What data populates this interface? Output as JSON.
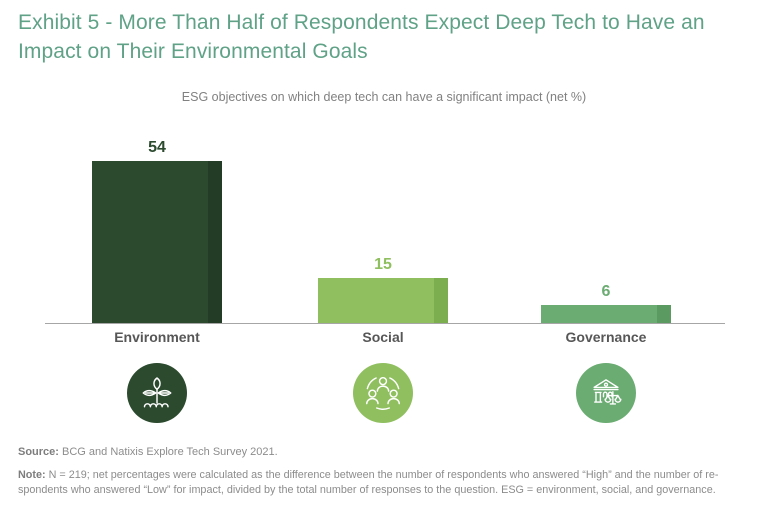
{
  "title": {
    "line1": "Exhibit 5 - More Than Half of Respondents Expect Deep Tech to Have an",
    "line2": "Impact on Their Environmental Goals"
  },
  "subtitle": "ESG objectives on which deep tech can have a significant impact (net %)",
  "chart_data": {
    "type": "bar",
    "title": "ESG objectives on which deep tech can have a significant impact (net %)",
    "categories": [
      "Environment",
      "Social",
      "Governance"
    ],
    "values": [
      54,
      15,
      6
    ],
    "value_labels": [
      "54",
      "15",
      "6"
    ],
    "bar_colors": [
      "#2b4a2e",
      "#8fbf5f",
      "#6bac72"
    ],
    "bar_shade_colors": [
      "#223c25",
      "#7cad4f",
      "#5b9b62"
    ],
    "xlabel": "",
    "ylabel": "net %",
    "ylim": [
      0,
      54
    ],
    "grid": false,
    "legend": "none"
  },
  "bars": [
    {
      "label": "Environment",
      "value": "54",
      "color": "#2b4a2e",
      "shade": "#223c25",
      "icon": "plant-icon"
    },
    {
      "label": "Social",
      "value": "15",
      "color": "#8fbf5f",
      "shade": "#7cad4f",
      "icon": "people-icon"
    },
    {
      "label": "Governance",
      "value": "6",
      "color": "#6bac72",
      "shade": "#5b9b62",
      "icon": "bank-scales-icon"
    }
  ],
  "footer": {
    "source_label": "Source:",
    "source_text": " BCG and Natixis Explore Tech Survey 2021.",
    "note_label": "Note:",
    "note_line1": " N = 219; net percentages were calculated as the difference between the number of respondents who answered “High” and the number of re-",
    "note_line2": "spondents who answered “Low” for impact, divided by the total number of responses to the question. ESG = environment, social, and governance."
  },
  "colors": {
    "title_accent": "#5fa287",
    "axis": "#a6a6a6",
    "category_label": "#575757",
    "footer_text": "#8c8c8c"
  }
}
